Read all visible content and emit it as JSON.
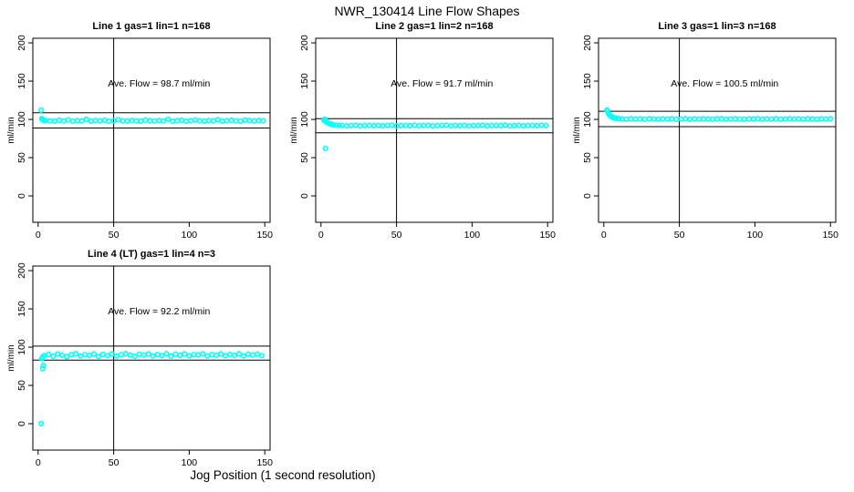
{
  "page_title": "NWR_130414  Line Flow Shapes",
  "shared_xlabel": "Jog Position (1 second resolution)",
  "colors": {
    "points": "#00ffff",
    "axis": "#000000",
    "background": "#ffffff",
    "reference_line": "#000000"
  },
  "chart_data": [
    {
      "type": "scatter",
      "title": "Line 1 gas=1 lin=1 n=168",
      "annotation": "Ave. Flow =  98.7  ml/min",
      "ave_flow_ml_min": 98.7,
      "n": 168,
      "ylabel": "ml/min",
      "xticks": [
        0,
        50,
        100,
        150
      ],
      "yticks": [
        0,
        50,
        100,
        150,
        200
      ],
      "xlim": [
        -3.5,
        153.5
      ],
      "ylim": [
        -34.5,
        206
      ],
      "vline_x": 50,
      "hlines": [
        108.6,
        88.8
      ],
      "extra_points": [
        [
          2,
          112
        ],
        [
          2.5,
          101
        ],
        [
          3,
          99.5
        ],
        [
          4,
          98.5
        ]
      ],
      "band": {
        "x_start": 5,
        "x_step": 3,
        "y": [
          98.5,
          98,
          97.6,
          98.8,
          98,
          99.2,
          97.7,
          98.3,
          98,
          100,
          97.6,
          98.4,
          98,
          98.9,
          97.5,
          98.2,
          99.5,
          98,
          97.8,
          98.6,
          98.1,
          97.6,
          99,
          98.3,
          97.9,
          98.5,
          98,
          100,
          97.7,
          98.2,
          98.8,
          97.5,
          98.3,
          99.1,
          98,
          97.8,
          98.5,
          98.1,
          99.4,
          97.6,
          98.2,
          98.7,
          98,
          97.7,
          99,
          98.4,
          97.9,
          98.6,
          98.1
        ]
      }
    },
    {
      "type": "scatter",
      "title": "Line 2 gas=1 lin=2 n=168",
      "annotation": "Ave. Flow =  91.7  ml/min",
      "ave_flow_ml_min": 91.7,
      "n": 168,
      "ylabel": "ml/min",
      "xticks": [
        0,
        50,
        100,
        150
      ],
      "yticks": [
        0,
        50,
        100,
        150,
        200
      ],
      "xlim": [
        -3.5,
        153.5
      ],
      "ylim": [
        -34.5,
        206
      ],
      "vline_x": 50,
      "hlines": [
        100.9,
        82.5
      ],
      "extra_points": [
        [
          2,
          99
        ],
        [
          2.5,
          100
        ],
        [
          3,
          97.5
        ],
        [
          3,
          62
        ],
        [
          4,
          96
        ],
        [
          5,
          95
        ],
        [
          6,
          94.2
        ],
        [
          7,
          93.5
        ],
        [
          8,
          93
        ],
        [
          10,
          92.5
        ],
        [
          12,
          92.2
        ]
      ],
      "band": {
        "x_start": 14,
        "x_step": 3,
        "y": [
          92,
          91.6,
          91.9,
          92.2,
          91.5,
          91.8,
          92.1,
          91.7,
          92,
          91.6,
          91.9,
          92.3,
          91.5,
          91.8,
          92,
          91.7,
          92.2,
          91.6,
          91.9,
          92.1,
          91.5,
          91.8,
          92,
          92.3,
          91.6,
          91.9,
          91.7,
          92.1,
          91.5,
          92,
          91.8,
          92.2,
          91.6,
          91.9,
          92,
          91.7,
          92.3,
          91.5,
          91.8,
          92.1,
          91.6,
          92,
          91.9,
          91.7,
          92.2,
          91.8
        ]
      }
    },
    {
      "type": "scatter",
      "title": "Line 3 gas=1 lin=3 n=168",
      "annotation": "Ave. Flow =  100.5  ml/min",
      "ave_flow_ml_min": 100.5,
      "n": 168,
      "ylabel": "ml/min",
      "xticks": [
        0,
        50,
        100,
        150
      ],
      "yticks": [
        0,
        50,
        100,
        150,
        200
      ],
      "xlim": [
        -3.5,
        153.5
      ],
      "ylim": [
        -34.5,
        206
      ],
      "vline_x": 50,
      "hlines": [
        110.6,
        90.5
      ],
      "extra_points": [
        [
          2,
          112
        ],
        [
          2.5,
          111.5
        ],
        [
          3,
          108
        ],
        [
          4,
          105.5
        ],
        [
          5,
          103.5
        ],
        [
          6,
          102.5
        ],
        [
          7,
          101.8
        ],
        [
          8,
          101.3
        ],
        [
          10,
          101
        ]
      ],
      "band": {
        "x_start": 12,
        "x_step": 3,
        "y": [
          100.5,
          100.3,
          100.7,
          100.4,
          100.6,
          100.2,
          100.8,
          100.5,
          100.3,
          100.6,
          100.4,
          100.7,
          100.2,
          100.5,
          100.8,
          100.3,
          100.6,
          100.4,
          100.7,
          100.5,
          100.2,
          100.6,
          100.8,
          100.3,
          100.5,
          100.7,
          100.4,
          100.2,
          100.6,
          100.5,
          100.8,
          100.3,
          100.6,
          100.4,
          100.7,
          100.2,
          100.5,
          100.8,
          100.4,
          100.6,
          100.3,
          100.7,
          100.5,
          100.2,
          100.6,
          100.4,
          100.8
        ]
      }
    },
    {
      "type": "scatter",
      "title": "Line 4 (LT) gas=1 lin=4 n=3",
      "annotation": "Ave. Flow =  92.2  ml/min",
      "ave_flow_ml_min": 92.2,
      "n": 3,
      "ylabel": "ml/min",
      "xticks": [
        0,
        50,
        100,
        150
      ],
      "yticks": [
        0,
        50,
        100,
        150,
        200
      ],
      "xlim": [
        -3.5,
        153.5
      ],
      "ylim": [
        -34.5,
        206
      ],
      "vline_x": 50,
      "hlines": [
        101.4,
        83.0
      ],
      "extra_points": [
        [
          2,
          0
        ],
        [
          3,
          72
        ],
        [
          3.5,
          76
        ],
        [
          2.5,
          85
        ],
        [
          3,
          87
        ]
      ],
      "band": {
        "x_start": 4,
        "x_step": 3,
        "y": [
          89,
          90.5,
          88,
          91,
          89.5,
          87.5,
          90,
          91.5,
          88.5,
          90.2,
          89.2,
          91,
          87.8,
          90.5,
          89,
          91.2,
          88.3,
          90,
          91.5,
          89.4,
          88,
          90.8,
          89.6,
          91,
          88.5,
          90.3,
          89,
          91.4,
          88.2,
          90.6,
          89.3,
          91,
          88.6,
          90.2,
          89.8,
          91.3,
          88.4,
          90,
          89.5,
          91,
          88.8,
          90.4,
          89.2,
          91.2,
          88.5,
          90.7,
          89.6,
          90.9,
          89
        ]
      }
    }
  ]
}
